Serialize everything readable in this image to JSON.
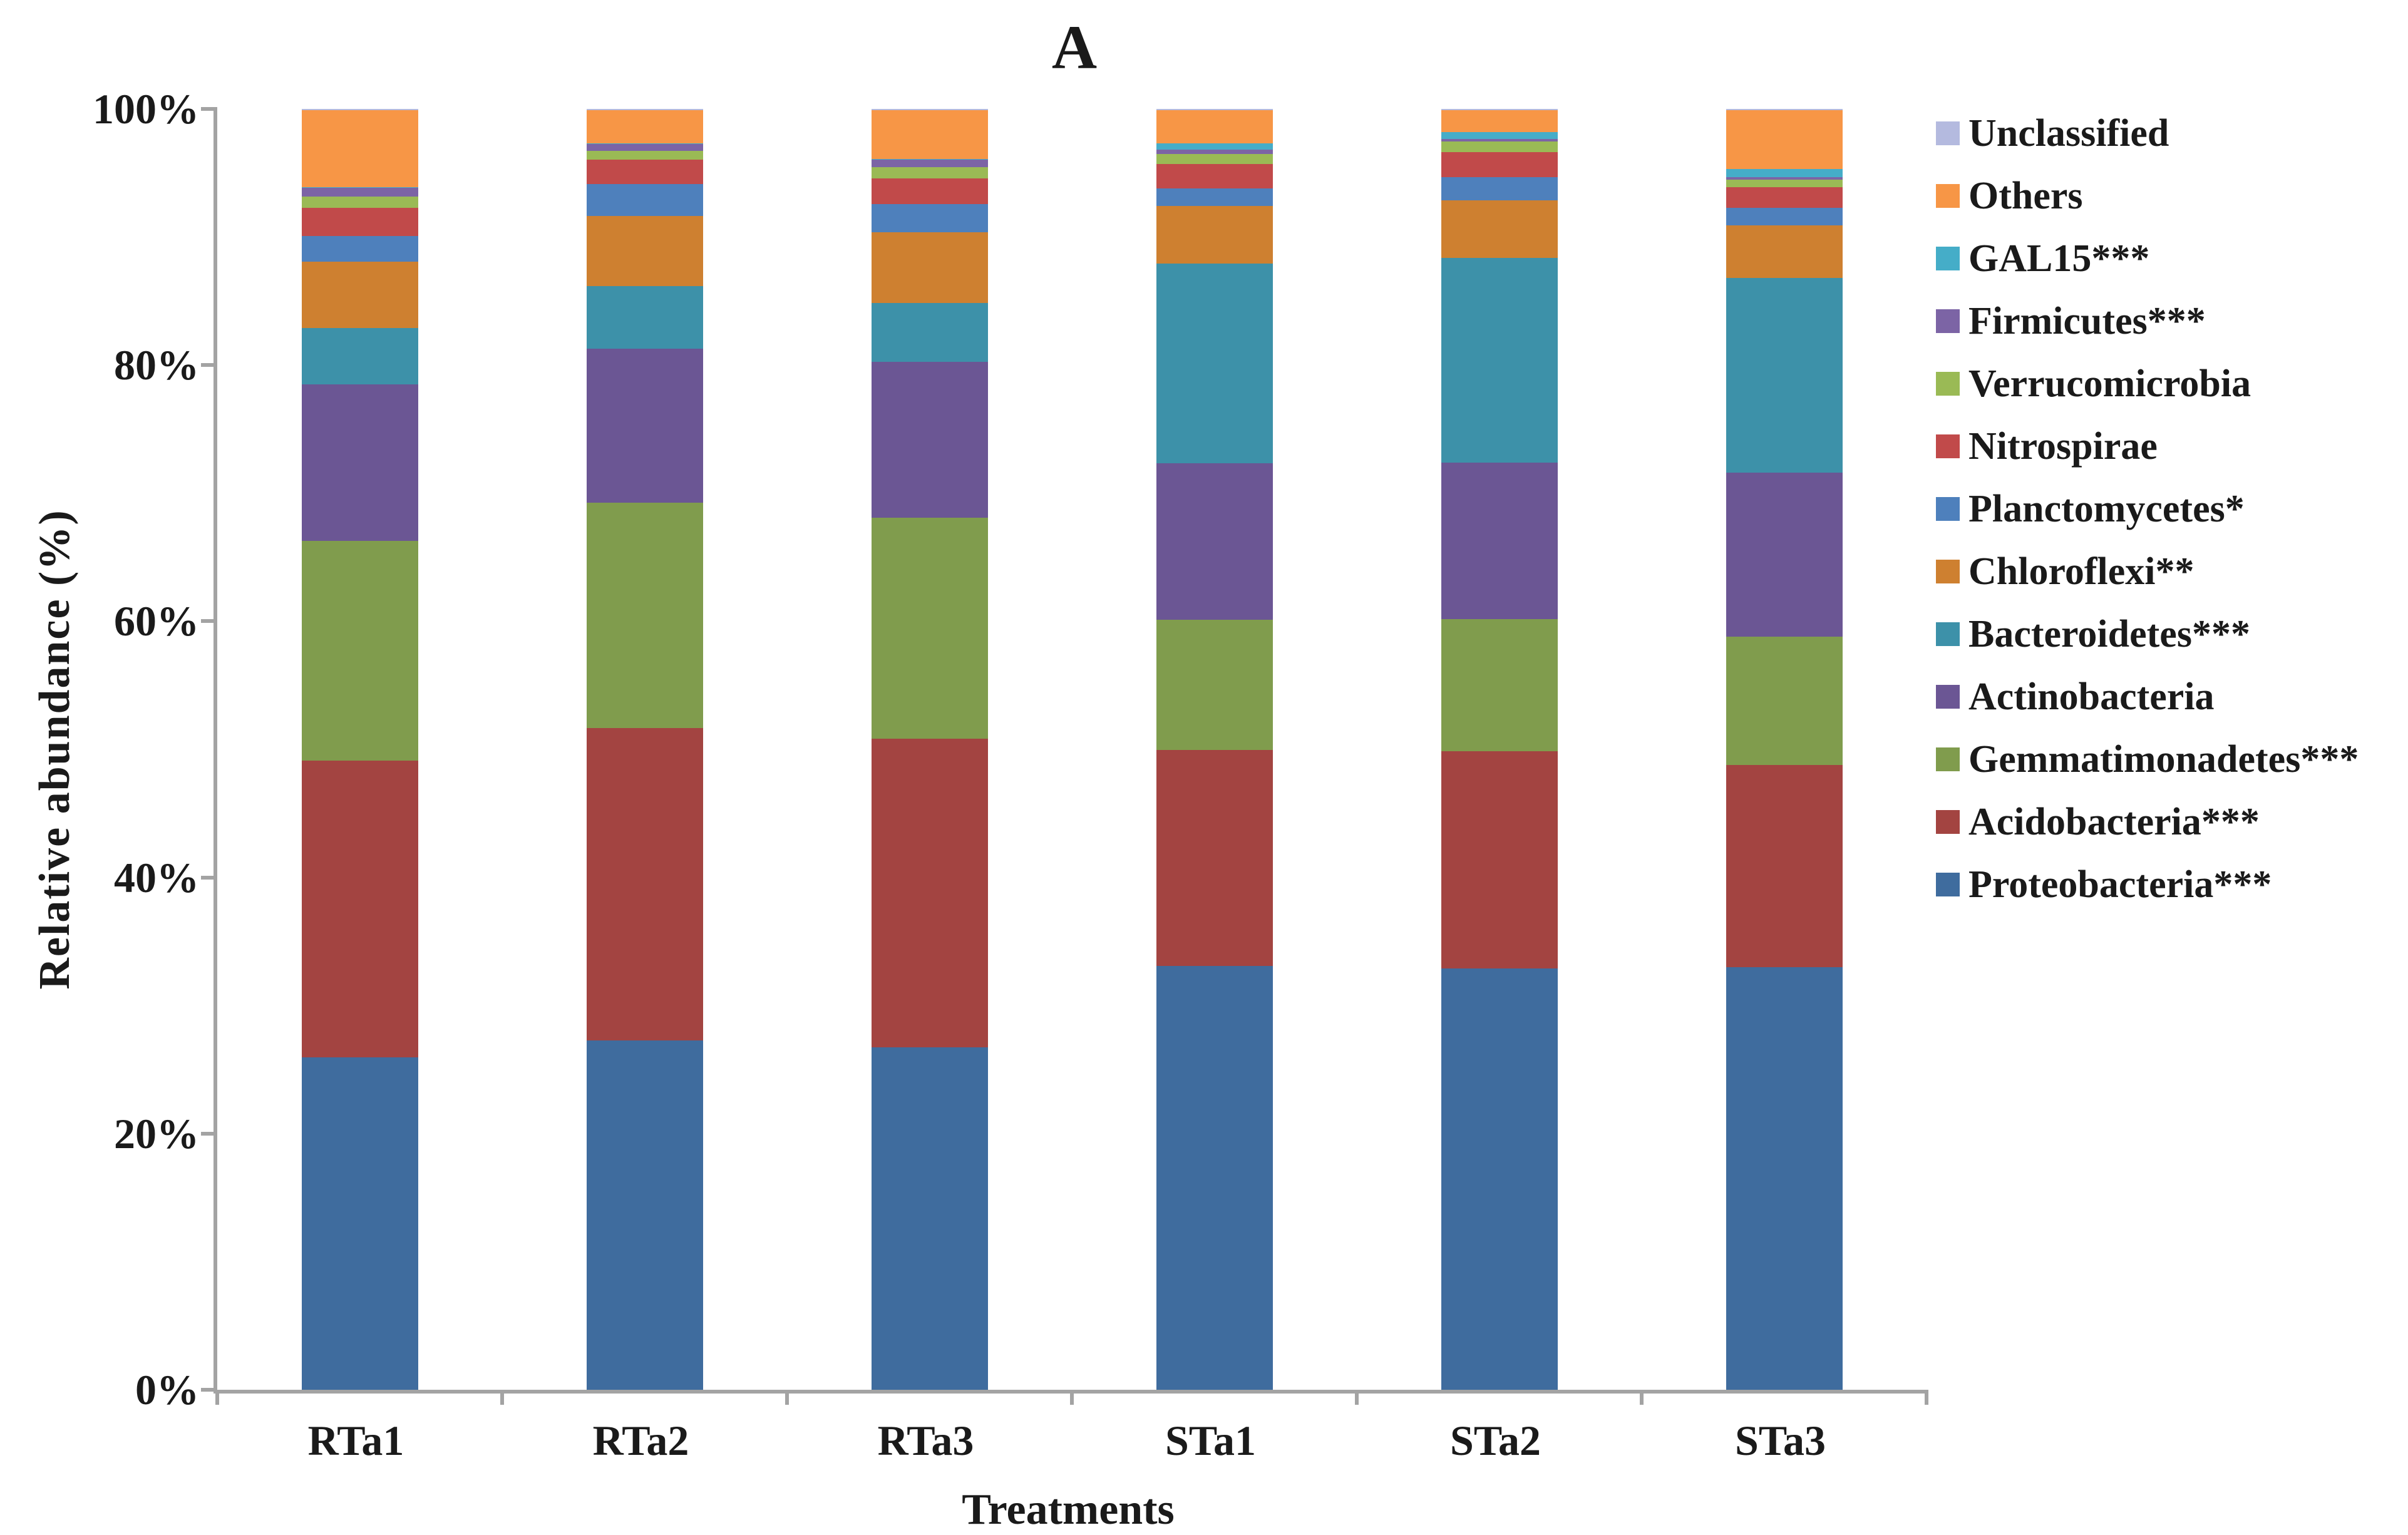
{
  "figure": {
    "panel_label": "A",
    "x_axis_title": "Treatments",
    "y_axis_title": "Relative  abundance (%)",
    "background_color": "#ffffff",
    "axis_color": "#a3a3a3",
    "text_color": "#1a1a1a"
  },
  "chart_data": {
    "type": "bar",
    "stacked": true,
    "title": "A",
    "xlabel": "Treatments",
    "ylabel": "Relative  abundance (%)",
    "ylim": [
      0,
      100
    ],
    "y_tick_labels": [
      "0%",
      "20%",
      "40%",
      "60%",
      "80%",
      "100%"
    ],
    "grid": false,
    "legend_position": "right",
    "legend_order_top_to_bottom": [
      "Unclassified",
      "Others",
      "GAL15***",
      "Firmicutes***",
      "Verrucomicrobia",
      "Nitrospirae",
      "Planctomycetes*",
      "Chloroflexi**",
      "Bacteroidetes***",
      "Actinobacteria",
      "Gemmatimonadetes***",
      "Acidobacteria***",
      "Proteobacteria***"
    ],
    "categories": [
      "RTa1",
      "RTa2",
      "RTa3",
      "STa1",
      "STa2",
      "STa3"
    ],
    "units": "percent",
    "series": [
      {
        "name": "Proteobacteria***",
        "color": "#3F6C9E",
        "values": [
          26.0,
          27.3,
          26.8,
          33.1,
          32.9,
          33.0
        ]
      },
      {
        "name": "Acidobacteria***",
        "color": "#A34441",
        "values": [
          23.2,
          24.4,
          24.1,
          16.9,
          17.0,
          15.8
        ]
      },
      {
        "name": "Gemmatimonadetes***",
        "color": "#809C4D",
        "values": [
          17.2,
          17.6,
          17.3,
          10.2,
          10.3,
          10.0
        ]
      },
      {
        "name": "Actinobacteria",
        "color": "#6B5694",
        "values": [
          12.2,
          12.0,
          12.2,
          12.2,
          12.2,
          12.8
        ]
      },
      {
        "name": "Bacteroidetes***",
        "color": "#3D91A9",
        "values": [
          4.4,
          4.9,
          4.6,
          15.6,
          16.0,
          15.2
        ]
      },
      {
        "name": "Chloroflexi**",
        "color": "#CE8030",
        "values": [
          5.2,
          5.5,
          5.5,
          4.5,
          4.5,
          4.1
        ]
      },
      {
        "name": "Planctomycetes*",
        "color": "#4E80BC",
        "values": [
          2.0,
          2.5,
          2.2,
          1.4,
          1.8,
          1.4
        ]
      },
      {
        "name": "Nitrospirae",
        "color": "#C14A4A",
        "values": [
          2.2,
          1.9,
          2.0,
          1.9,
          2.0,
          1.6
        ]
      },
      {
        "name": "Verrucomicrobia",
        "color": "#9ABA55",
        "values": [
          0.9,
          0.7,
          0.9,
          0.8,
          0.8,
          0.6
        ]
      },
      {
        "name": "Firmicutes***",
        "color": "#7C64A5",
        "values": [
          0.7,
          0.5,
          0.6,
          0.3,
          0.2,
          0.2
        ]
      },
      {
        "name": "GAL15***",
        "color": "#45ADC8",
        "values": [
          0.05,
          0.05,
          0.05,
          0.5,
          0.55,
          0.6
        ]
      },
      {
        "name": "Others",
        "color": "#F79646",
        "values": [
          6.0,
          2.6,
          3.8,
          2.6,
          1.7,
          4.6
        ]
      },
      {
        "name": "Unclassified",
        "color": "#B4BADF",
        "values": [
          0.1,
          0.1,
          0.1,
          0.1,
          0.1,
          0.1
        ]
      }
    ]
  }
}
